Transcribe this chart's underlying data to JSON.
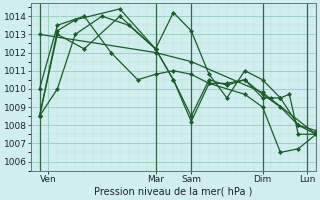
{
  "xlabel": "Pression niveau de la mer( hPa )",
  "bg_color": "#d0eef0",
  "grid_major_color": "#99ccbb",
  "grid_minor_color": "#bbddcc",
  "line_color": "#1a5c28",
  "vline_color": "#336644",
  "ylim": [
    1005.5,
    1014.7
  ],
  "xlim": [
    0,
    192
  ],
  "yticks": [
    1006,
    1007,
    1008,
    1009,
    1010,
    1011,
    1012,
    1013,
    1014
  ],
  "day_labels": [
    "Ven",
    "Mar",
    "Sam",
    "Dim",
    "Lun"
  ],
  "day_positions": [
    12,
    84,
    108,
    156,
    186
  ],
  "vline_positions": [
    6,
    84,
    108,
    156,
    186
  ],
  "series": [
    {
      "x": [
        6,
        84,
        108,
        156,
        192
      ],
      "y": [
        1013.0,
        1012.0,
        1011.5,
        1009.8,
        1007.5
      ]
    },
    {
      "x": [
        6,
        18,
        30,
        48,
        66,
        84,
        96,
        108,
        120,
        132,
        144,
        156,
        168,
        180,
        192
      ],
      "y": [
        1008.5,
        1010.0,
        1013.0,
        1014.0,
        1013.5,
        1012.2,
        1014.2,
        1013.2,
        1010.8,
        1009.5,
        1011.0,
        1010.5,
        1009.5,
        1008.0,
        1007.5
      ]
    },
    {
      "x": [
        6,
        18,
        30,
        60,
        84,
        96,
        108,
        120,
        132,
        144,
        156,
        168,
        180,
        192
      ],
      "y": [
        1008.5,
        1013.2,
        1013.8,
        1014.4,
        1012.2,
        1010.5,
        1008.5,
        1010.5,
        1010.2,
        1010.5,
        1009.7,
        1009.0,
        1008.0,
        1007.7
      ]
    },
    {
      "x": [
        6,
        18,
        36,
        60,
        84,
        96,
        108,
        120,
        132,
        144,
        156,
        162,
        168,
        174,
        180,
        192
      ],
      "y": [
        1008.5,
        1013.0,
        1012.2,
        1014.0,
        1012.2,
        1010.5,
        1008.2,
        1010.3,
        1010.3,
        1010.5,
        1009.5,
        1009.5,
        1009.5,
        1009.7,
        1007.5,
        1007.5
      ]
    },
    {
      "x": [
        6,
        18,
        36,
        54,
        72,
        84,
        96,
        108,
        120,
        144,
        156,
        168,
        180,
        192
      ],
      "y": [
        1010.0,
        1013.5,
        1014.0,
        1012.0,
        1010.5,
        1010.8,
        1011.0,
        1010.8,
        1010.3,
        1009.7,
        1009.0,
        1006.5,
        1006.7,
        1007.5
      ]
    }
  ]
}
